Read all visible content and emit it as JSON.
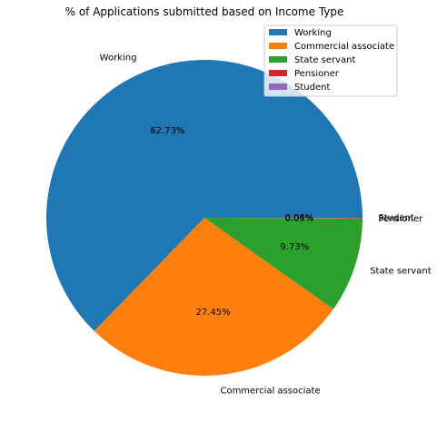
{
  "chart_data": {
    "type": "pie",
    "title": "% of Applications submitted based on Income Type",
    "slices": [
      {
        "label": "Working",
        "value": 62.73,
        "pct_label": "62.73%",
        "color": "#1f77b4"
      },
      {
        "label": "Commercial associate",
        "value": 27.45,
        "pct_label": "27.45%",
        "color": "#ff7f0e"
      },
      {
        "label": "State servant",
        "value": 9.73,
        "pct_label": "9.73%",
        "color": "#2ca02c"
      },
      {
        "label": "Pensioner",
        "value": 0.05,
        "pct_label": "0.05%",
        "color": "#d62728"
      },
      {
        "label": "Student",
        "value": 0.04,
        "pct_label": "0.04%",
        "color": "#9467bd"
      }
    ],
    "legend": {
      "position": "top-right",
      "entries": [
        "Working",
        "Commercial associate",
        "State servant",
        "Pensioner",
        "Student"
      ]
    }
  }
}
